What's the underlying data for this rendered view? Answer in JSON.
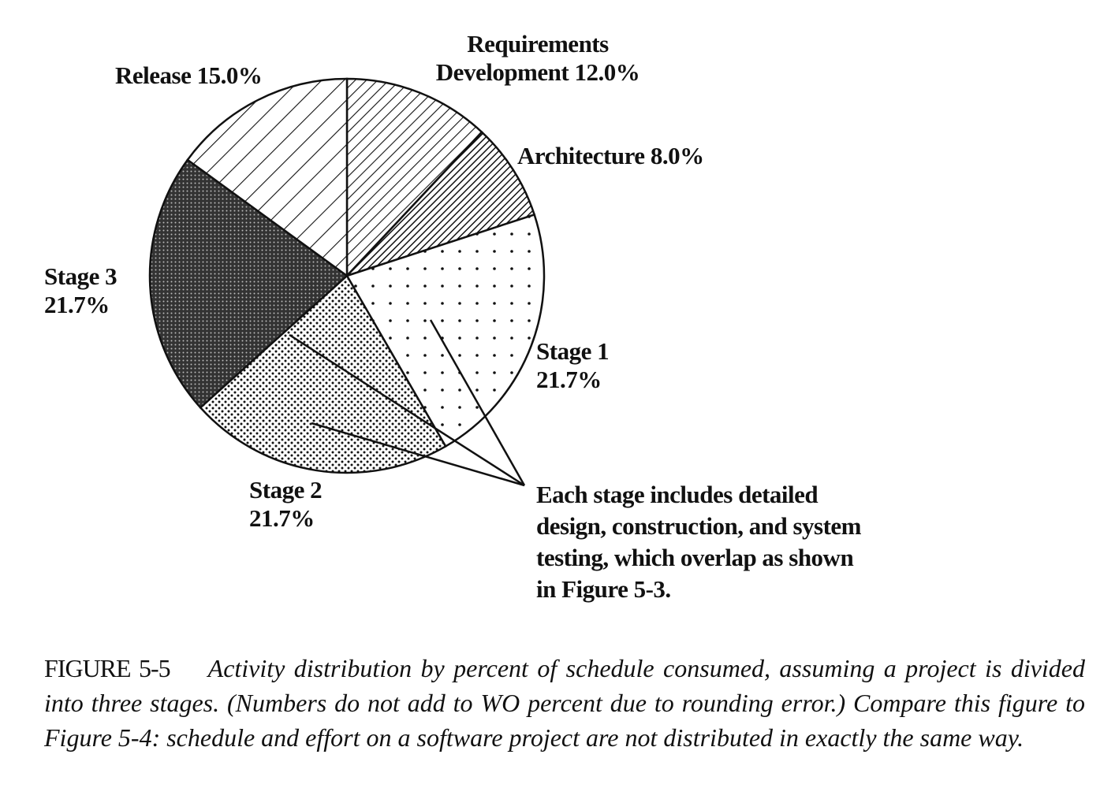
{
  "chart_data": {
    "type": "pie",
    "start": "top",
    "direction": "clockwise",
    "slices": [
      {
        "label_lines": [
          "Requirements",
          "Development 12.0%"
        ],
        "value": 12.0,
        "pattern": "diagonal-hatch-fine"
      },
      {
        "label_lines": [
          "Architecture 8.0%"
        ],
        "value": 8.0,
        "pattern": "diagonal-hatch-dense"
      },
      {
        "label_lines": [
          "Stage 1",
          "21.7%"
        ],
        "value": 21.7,
        "pattern": "sparse-dots"
      },
      {
        "label_lines": [
          "Stage 2",
          "21.7%"
        ],
        "value": 21.7,
        "pattern": "dense-dots"
      },
      {
        "label_lines": [
          "Stage 3",
          "21.7%"
        ],
        "value": 21.7,
        "pattern": "dark-stipple"
      },
      {
        "label_lines": [
          "Release 15.0%"
        ],
        "value": 15.0,
        "pattern": "diagonal-hatch-wide"
      }
    ],
    "annotation_lines": [
      "Each stage includes detailed",
      "design, construction, and system",
      "testing, which overlap as shown",
      "in Figure 5-3."
    ]
  },
  "caption": {
    "figure": "FIGURE 5-5",
    "text": "Activity distribution by percent of schedule consumed, assuming a project is divided into three stages. (Numbers do not add to WO percent due to rounding error.) Compare this figure to Figure 5-4: schedule and effort on a software project are not distributed in exactly the same way."
  }
}
